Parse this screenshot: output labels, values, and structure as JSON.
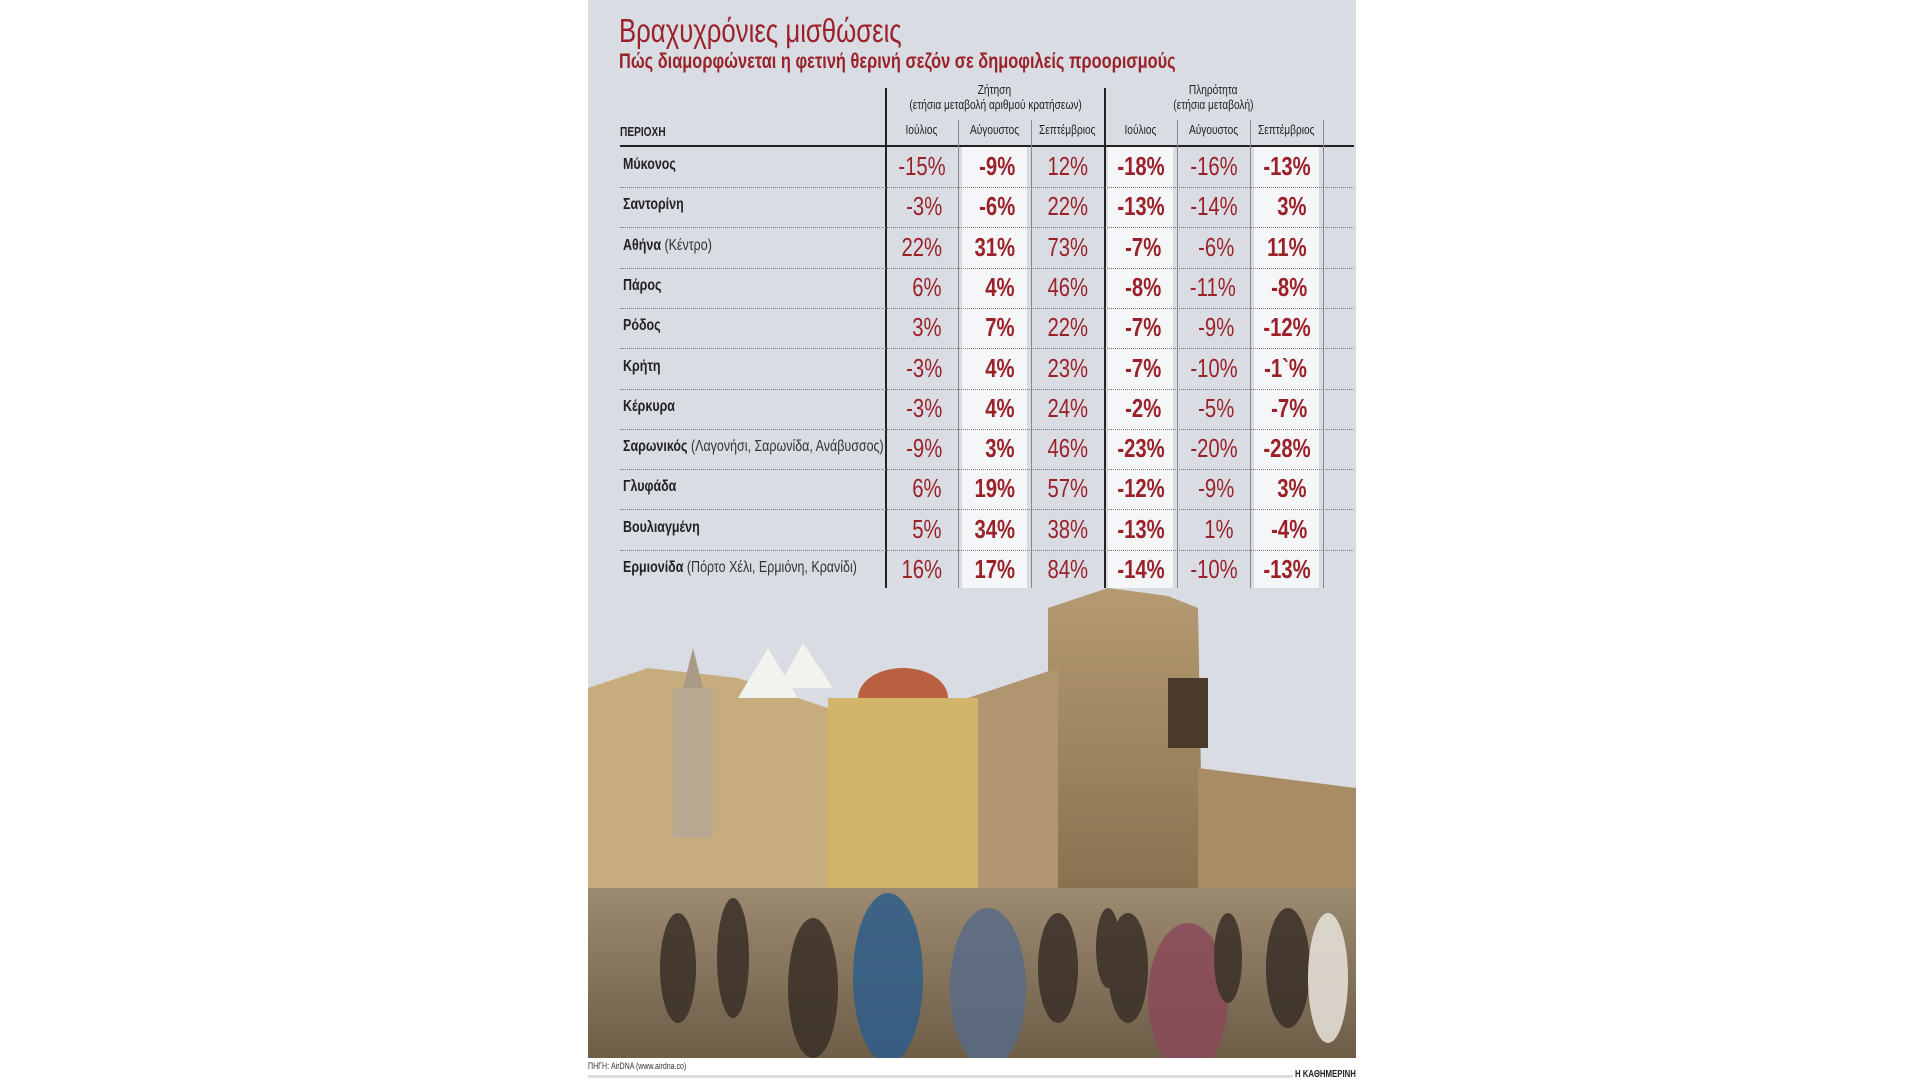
{
  "title": "Βραχυχρόνιες μισθώσεις",
  "subtitle": "Πώς διαμορφώνεται η φετινή θερινή σεζόν σε δημοφιλείς προορισμούς",
  "source": "ΠΗΓΗ: AirDNA (www.airdna.co)",
  "brand": "Η ΚΑΘΗΜΕΡΙΝΗ",
  "colors": {
    "accent": "#9b2129",
    "background": "#d9dde3",
    "highlight_column": "#f5f6f8"
  },
  "chart_data": {
    "type": "table",
    "row_header": "ΠΕΡΙΟΧΗ",
    "groups": [
      {
        "title": "Ζήτηση",
        "subtitle": "(ετήσια μεταβολή αριθμού κρατήσεων)",
        "columns": [
          "Ιούλιος",
          "Αύγουστος",
          "Σεπτέμβριος"
        ]
      },
      {
        "title": "Πληρότητα",
        "subtitle": "(ετήσια μεταβολή)",
        "columns": [
          "Ιούλιος",
          "Αύγουστος",
          "Σεπτέμβριος"
        ]
      }
    ],
    "rows": [
      {
        "name": "Μύκονος",
        "detail": "",
        "values": [
          "-15%",
          "-9%",
          "12%",
          "-18%",
          "-16%",
          "-13%"
        ]
      },
      {
        "name": "Σαντορίνη",
        "detail": "",
        "values": [
          "-3%",
          "-6%",
          "22%",
          "-13%",
          "-14%",
          "3%"
        ]
      },
      {
        "name": "Αθήνα",
        "detail": "(Κέντρο)",
        "values": [
          "22%",
          "31%",
          "73%",
          "-7%",
          "-6%",
          "11%"
        ]
      },
      {
        "name": "Πάρος",
        "detail": "",
        "values": [
          "6%",
          "4%",
          "46%",
          "-8%",
          "-11%",
          "-8%"
        ]
      },
      {
        "name": "Ρόδος",
        "detail": "",
        "values": [
          "3%",
          "7%",
          "22%",
          "-7%",
          "-9%",
          "-12%"
        ]
      },
      {
        "name": "Κρήτη",
        "detail": "",
        "values": [
          "-3%",
          "4%",
          "23%",
          "-7%",
          "-10%",
          "-1`%"
        ]
      },
      {
        "name": "Κέρκυρα",
        "detail": "",
        "values": [
          "-3%",
          "4%",
          "24%",
          "-2%",
          "-5%",
          "-7%"
        ]
      },
      {
        "name": "Σαρωνικός",
        "detail": "(Λαγονήσι, Σαρωνίδα, Ανάβυσσος)",
        "values": [
          "-9%",
          "3%",
          "46%",
          "-23%",
          "-20%",
          "-28%"
        ]
      },
      {
        "name": "Γλυφάδα",
        "detail": "",
        "values": [
          "6%",
          "19%",
          "57%",
          "-12%",
          "-9%",
          "3%"
        ]
      },
      {
        "name": "Βουλιαγμένη",
        "detail": "",
        "values": [
          "5%",
          "34%",
          "38%",
          "-13%",
          "1%",
          "-4%"
        ]
      },
      {
        "name": "Ερμιονίδα",
        "detail": "(Πόρτο Χέλι, Ερμιόνη, Κρανίδι)",
        "values": [
          "16%",
          "17%",
          "84%",
          "-14%",
          "-10%",
          "-13%"
        ]
      }
    ],
    "highlighted_columns": [
      1,
      3,
      5
    ]
  }
}
